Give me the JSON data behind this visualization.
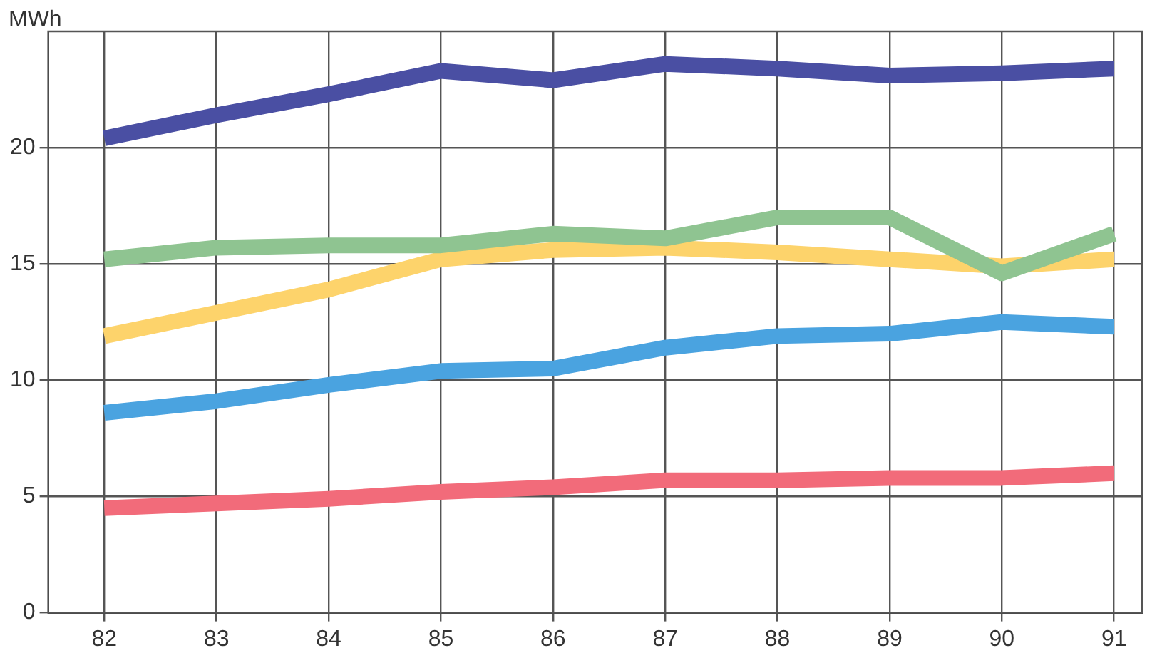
{
  "chart_data": {
    "type": "line",
    "ylabel": "MWh",
    "x": [
      82,
      83,
      84,
      85,
      86,
      87,
      88,
      89,
      90,
      91
    ],
    "xlim": [
      81.5,
      91.25
    ],
    "xticks": [
      82,
      83,
      84,
      85,
      86,
      87,
      88,
      89,
      90,
      91
    ],
    "ylim": [
      0,
      25
    ],
    "yticks": [
      0,
      5,
      10,
      15,
      20
    ],
    "grid": true,
    "legend": false,
    "marker": "none",
    "line_style": "solid",
    "series": [
      {
        "color": "#4a4fa3",
        "values": [
          20.4,
          21.4,
          22.3,
          23.3,
          22.9,
          23.6,
          23.4,
          23.1,
          23.2,
          23.4
        ]
      },
      {
        "color": "#8fc491",
        "values": [
          15.2,
          15.7,
          15.8,
          15.8,
          16.3,
          16.1,
          17.0,
          17.0,
          14.6,
          16.3
        ]
      },
      {
        "color": "#fdd36b",
        "values": [
          11.9,
          12.9,
          13.9,
          15.2,
          15.6,
          15.7,
          15.5,
          15.2,
          14.9,
          15.2
        ]
      },
      {
        "color": "#4aa3e0",
        "values": [
          8.6,
          9.1,
          9.8,
          10.4,
          10.5,
          11.4,
          11.9,
          12.0,
          12.5,
          12.3
        ]
      },
      {
        "color": "#f26b7a",
        "values": [
          4.5,
          4.7,
          4.9,
          5.2,
          5.4,
          5.7,
          5.7,
          5.8,
          5.8,
          6.0
        ]
      }
    ]
  }
}
